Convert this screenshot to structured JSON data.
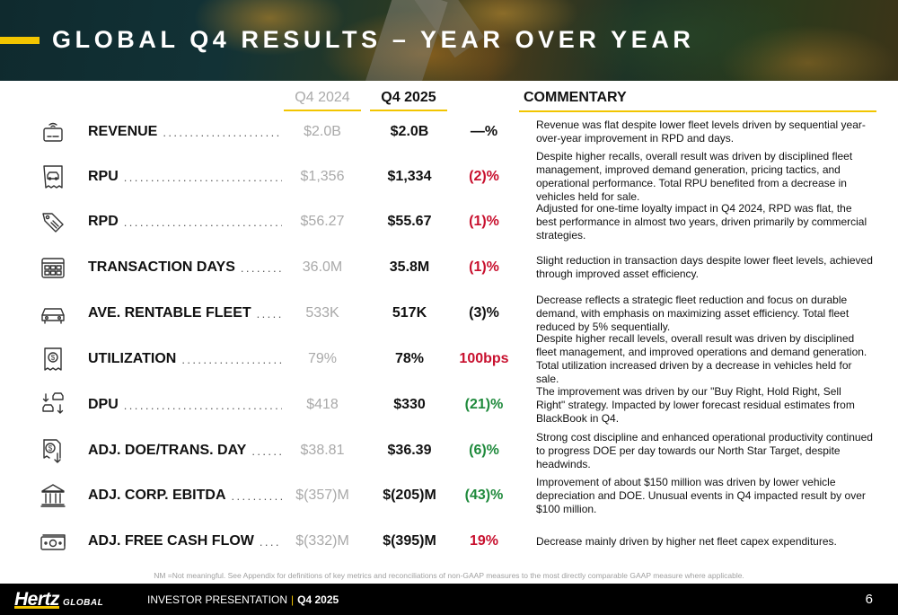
{
  "title": "GLOBAL Q4 RESULTS – YEAR OVER YEAR",
  "columns": {
    "q4_2024": "Q4 2024",
    "q4_2025": "Q4 2025",
    "commentary": "COMMENTARY"
  },
  "colors": {
    "accent": "#f2c500",
    "negative_red": "#c8102e",
    "positive_green": "#1f8a3c",
    "neutral": "#111111",
    "muted_gray": "#a9a9a9"
  },
  "rows": [
    {
      "icon": "cash-register-icon",
      "label": "REVENUE",
      "q4_2024": "$2.0B",
      "q4_2025": "$2.0B",
      "change": "—%",
      "change_color": "#111111",
      "commentary": "Revenue was flat despite lower fleet levels driven by sequential year-over-year improvement in RPD and days."
    },
    {
      "icon": "car-receipt-icon",
      "label": "RPU",
      "q4_2024": "$1,356",
      "q4_2025": "$1,334",
      "change": "(2)%",
      "change_color": "#c8102e",
      "commentary": "Despite higher recalls, overall result was driven by disciplined fleet management, improved demand generation, pricing tactics, and operational performance. Total RPU benefited from a decrease in vehicles held for sale."
    },
    {
      "icon": "price-tag-icon",
      "label": "RPD",
      "q4_2024": "$56.27",
      "q4_2025": "$55.67",
      "change": "(1)%",
      "change_color": "#c8102e",
      "commentary": "Adjusted for one-time loyalty impact in Q4 2024, RPD was flat, the best performance in almost two years, driven primarily by commercial strategies."
    },
    {
      "icon": "calendar-icon",
      "label": "TRANSACTION DAYS",
      "q4_2024": "36.0M",
      "q4_2025": "35.8M",
      "change": "(1)%",
      "change_color": "#c8102e",
      "commentary": "Slight reduction in transaction days despite lower fleet levels, achieved through improved asset efficiency."
    },
    {
      "icon": "car-front-icon",
      "label": "AVE. RENTABLE FLEET",
      "q4_2024": "533K",
      "q4_2025": "517K",
      "change": "(3)%",
      "change_color": "#111111",
      "commentary": "Decrease reflects a strategic fleet reduction and focus on durable demand, with emphasis on maximizing asset efficiency. Total fleet reduced by 5% sequentially."
    },
    {
      "icon": "dollar-receipt-icon",
      "label": "UTILIZATION",
      "q4_2024": "79%",
      "q4_2025": "78%",
      "change": "100bps",
      "change_color": "#c8102e",
      "commentary": "Despite higher recall levels, overall result was driven by disciplined fleet management, and improved operations and demand generation. Total utilization increased driven by a decrease in vehicles held for sale."
    },
    {
      "icon": "car-exchange-icon",
      "label": "DPU",
      "q4_2024": "$418",
      "q4_2025": "$330",
      "change": "(21)%",
      "change_color": "#1f8a3c",
      "commentary": "The improvement was driven by our \"Buy Right, Hold Right, Sell Right\" strategy. Impacted by lower forecast residual estimates from BlackBook in Q4."
    },
    {
      "icon": "dollar-down-receipt-icon",
      "label": "ADJ. DOE/TRANS. DAY",
      "q4_2024": "$38.81",
      "q4_2025": "$36.39",
      "change": "(6)%",
      "change_color": "#1f8a3c",
      "commentary": "Strong cost discipline and enhanced operational productivity continued to progress DOE per day towards our North Star Target, despite headwinds."
    },
    {
      "icon": "bank-icon",
      "label": "ADJ. CORP. EBITDA",
      "q4_2024": "$(357)M",
      "q4_2025": "$(205)M",
      "change": "(43)%",
      "change_color": "#1f8a3c",
      "commentary": "Improvement of about $150 million was driven by lower vehicle depreciation and DOE. Unusual events in Q4 impacted result by over $100 million."
    },
    {
      "icon": "cash-bill-icon",
      "label": "ADJ. FREE CASH FLOW",
      "q4_2024": "$(332)M",
      "q4_2025": "$(395)M",
      "change": "19%",
      "change_color": "#c8102e",
      "commentary": "Decrease mainly driven by higher net fleet capex expenditures."
    }
  ],
  "footnote": "NM =Not meaningful. See Appendix for definitions of key metrics and reconciliations of non-GAAP measures to the most directly comparable GAAP measure where applicable.",
  "footer": {
    "logo_main": "Hertz",
    "logo_sub": "GLOBAL",
    "presentation": "INVESTOR PRESENTATION",
    "separator": "|",
    "quarter": "Q4 2025",
    "page": "6"
  }
}
